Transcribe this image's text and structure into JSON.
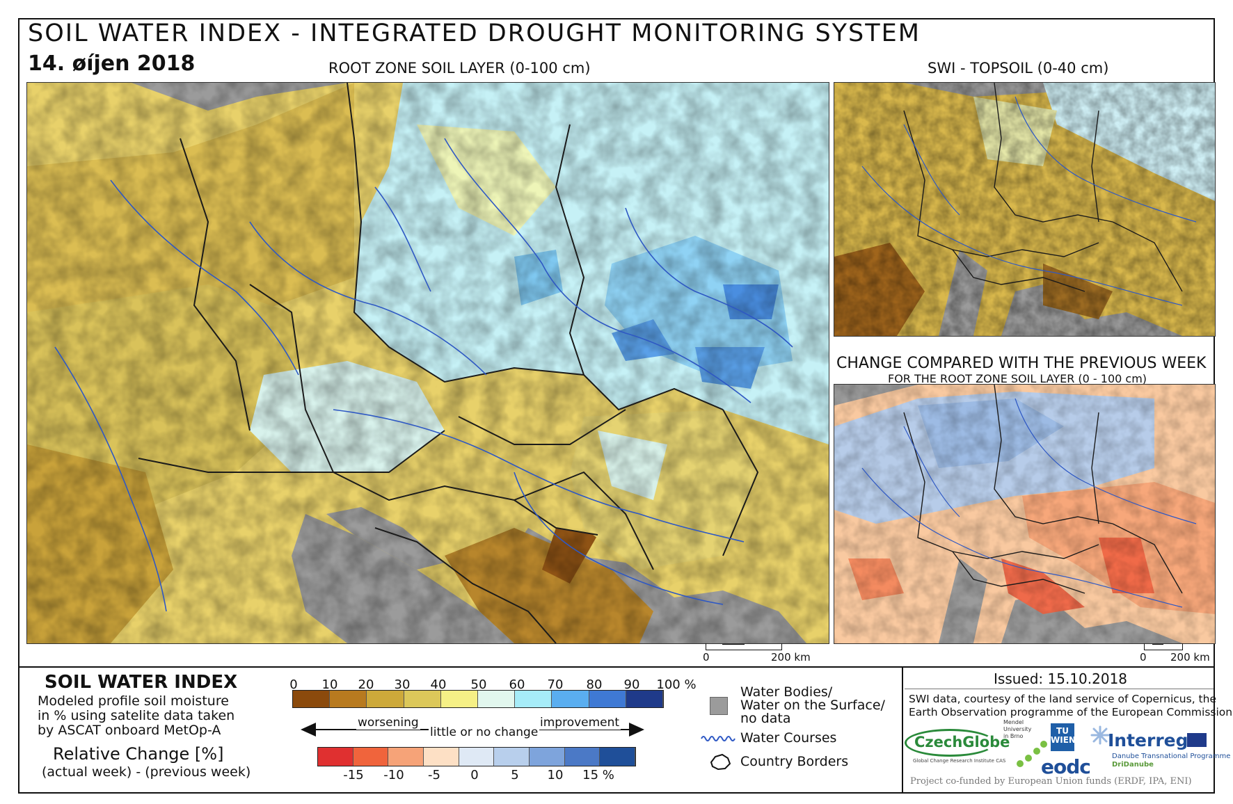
{
  "header": {
    "title": "SOIL WATER INDEX - INTEGRATED DROUGHT MONITORING SYSTEM",
    "date": "14. øíjen 2018"
  },
  "maps": {
    "main_title": "ROOT ZONE SOIL LAYER (0-100 cm)",
    "topsoil_title": "SWI - TOPSOIL (0-40 cm)",
    "change_title": "CHANGE COMPARED WITH THE PREVIOUS WEEK",
    "change_subtitle": "FOR THE ROOT ZONE SOIL LAYER (0 - 100 cm)",
    "scalebar_main": {
      "zero": "0",
      "end": "200 km"
    },
    "scalebar_change": {
      "zero": "0",
      "end": "200 km"
    }
  },
  "legend": {
    "heading": "SOIL WATER INDEX",
    "description": [
      "Modeled profile soil moisture",
      "in % using satelite data taken",
      "by ASCAT onboard MetOp-A"
    ],
    "relative_heading": "Relative Change [%]",
    "relative_note": "(actual week) - (previous week)",
    "swi_ticks": [
      "0",
      "10",
      "20",
      "30",
      "40",
      "50",
      "60",
      "70",
      "80",
      "90",
      "100 %"
    ],
    "swi_colors": [
      "#8b4a0c",
      "#b87a1f",
      "#cda93a",
      "#dcc85a",
      "#f5f086",
      "#e2f7ee",
      "#a6ecf8",
      "#5aaef0",
      "#3f79d4",
      "#1f3a8a"
    ],
    "change_colors": [
      "#e03030",
      "#f0643c",
      "#f6a378",
      "#fde0c5",
      "#dfe9f5",
      "#b8cfec",
      "#7ea4dc",
      "#4b79c6",
      "#1f4f99"
    ],
    "change_ticks": [
      "-15",
      "-10",
      "-5",
      "0",
      "5",
      "10",
      "15 %"
    ],
    "worsening": "worsening",
    "little_change": "little or no change",
    "improvement": "improvement",
    "symbols": {
      "water_bodies": [
        "Water Bodies/",
        "Water on the Surface/",
        "no data"
      ],
      "water_courses": "Water Courses",
      "country_borders": "Country Borders"
    }
  },
  "credits": {
    "issued": "Issued: 15.10.2018",
    "courtesy": [
      "SWI data, courtesy of the land service of Copernicus, the",
      "Earth Observation programme of the European Commission"
    ],
    "logos": {
      "czechglobe": "CzechGlobe",
      "czechglobe_sub": "Global Change Research Institute CAS",
      "mendel": [
        "Mendel",
        "University",
        "in Brno"
      ],
      "tuwien": "TU WIEN",
      "eodc": "eodc",
      "interreg": "Interreg",
      "interreg_sub": [
        "Danube Transnational Programme",
        "DriDanube"
      ]
    },
    "cofunded": "Project co-funded by European Union funds (ERDF, IPA, ENI)"
  }
}
